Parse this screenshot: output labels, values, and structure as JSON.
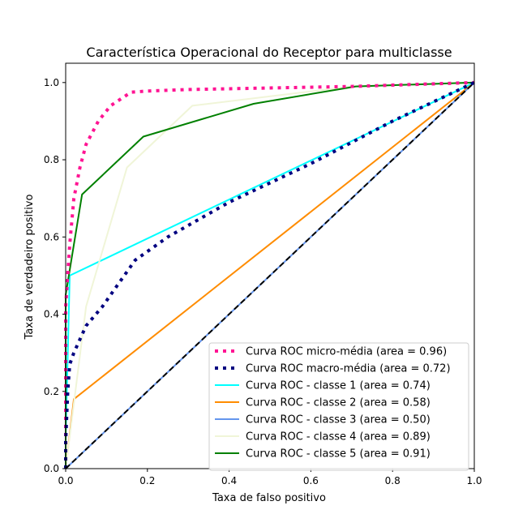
{
  "chart_data": {
    "type": "line",
    "title": "Característica Operacional do Receptor para multiclasse",
    "xlabel": "Taxa de falso positivo",
    "ylabel": "Taxa de verdadeiro positivo",
    "xlim": [
      0.0,
      1.0
    ],
    "ylim": [
      0.0,
      1.05
    ],
    "xticks": [
      "0.0",
      "0.2",
      "0.4",
      "0.6",
      "0.8",
      "1.0"
    ],
    "yticks": [
      "0.0",
      "0.2",
      "0.4",
      "0.6",
      "0.8",
      "1.0"
    ],
    "grid": false,
    "legend_position": "lower-right",
    "series": [
      {
        "name": "Curva ROC micro-média (area = 0.96)",
        "color": "#ff1493",
        "style": "dotted",
        "points": [
          [
            0.0,
            0.0
          ],
          [
            0.0,
            0.42
          ],
          [
            0.005,
            0.5
          ],
          [
            0.01,
            0.58
          ],
          [
            0.02,
            0.7
          ],
          [
            0.035,
            0.78
          ],
          [
            0.05,
            0.84
          ],
          [
            0.08,
            0.9
          ],
          [
            0.11,
            0.94
          ],
          [
            0.16,
            0.975
          ],
          [
            0.2,
            0.978
          ],
          [
            0.3,
            0.982
          ],
          [
            0.5,
            0.986
          ],
          [
            0.7,
            0.99
          ],
          [
            1.0,
            1.0
          ]
        ]
      },
      {
        "name": "Curva ROC macro-média (area = 0.72)",
        "color": "#000080",
        "style": "dotted",
        "points": [
          [
            0.0,
            0.0
          ],
          [
            0.0,
            0.07
          ],
          [
            0.005,
            0.2
          ],
          [
            0.01,
            0.27
          ],
          [
            0.02,
            0.3
          ],
          [
            0.05,
            0.37
          ],
          [
            0.09,
            0.42
          ],
          [
            0.13,
            0.48
          ],
          [
            0.17,
            0.54
          ],
          [
            0.25,
            0.6
          ],
          [
            0.4,
            0.69
          ],
          [
            0.6,
            0.79
          ],
          [
            0.8,
            0.9
          ],
          [
            1.0,
            1.0
          ]
        ]
      },
      {
        "name": "Curva ROC - classe 1 (area = 0.74)",
        "color": "#00ffff",
        "style": "solid",
        "points": [
          [
            0.0,
            0.0
          ],
          [
            0.0,
            0.08
          ],
          [
            0.01,
            0.5
          ],
          [
            1.0,
            1.0
          ]
        ]
      },
      {
        "name": "Curva ROC - classe 2 (area = 0.58)",
        "color": "#ff8c00",
        "style": "solid",
        "points": [
          [
            0.0,
            0.0
          ],
          [
            0.02,
            0.18
          ],
          [
            1.0,
            1.0
          ]
        ]
      },
      {
        "name": "Curva ROC - classe 3 (area = 0.50)",
        "color": "#6495ed",
        "style": "solid",
        "points": [
          [
            0.0,
            0.0
          ],
          [
            1.0,
            1.0
          ]
        ]
      },
      {
        "name": "Curva ROC - classe 4 (area = 0.89)",
        "color": "#f0f5d8",
        "style": "solid",
        "points": [
          [
            0.0,
            0.0
          ],
          [
            0.05,
            0.42
          ],
          [
            0.15,
            0.78
          ],
          [
            0.31,
            0.94
          ],
          [
            0.7,
            0.99
          ],
          [
            1.0,
            1.0
          ]
        ]
      },
      {
        "name": "Curva ROC - classe 5 (area = 0.91)",
        "color": "#008000",
        "style": "solid",
        "points": [
          [
            0.0,
            0.0
          ],
          [
            0.0,
            0.45
          ],
          [
            0.04,
            0.71
          ],
          [
            0.19,
            0.86
          ],
          [
            0.46,
            0.945
          ],
          [
            0.71,
            0.99
          ],
          [
            1.0,
            1.0
          ]
        ]
      }
    ],
    "reference_line": {
      "color": "#000000",
      "style": "dashed",
      "points": [
        [
          0.0,
          0.0
        ],
        [
          1.0,
          1.0
        ]
      ]
    }
  }
}
